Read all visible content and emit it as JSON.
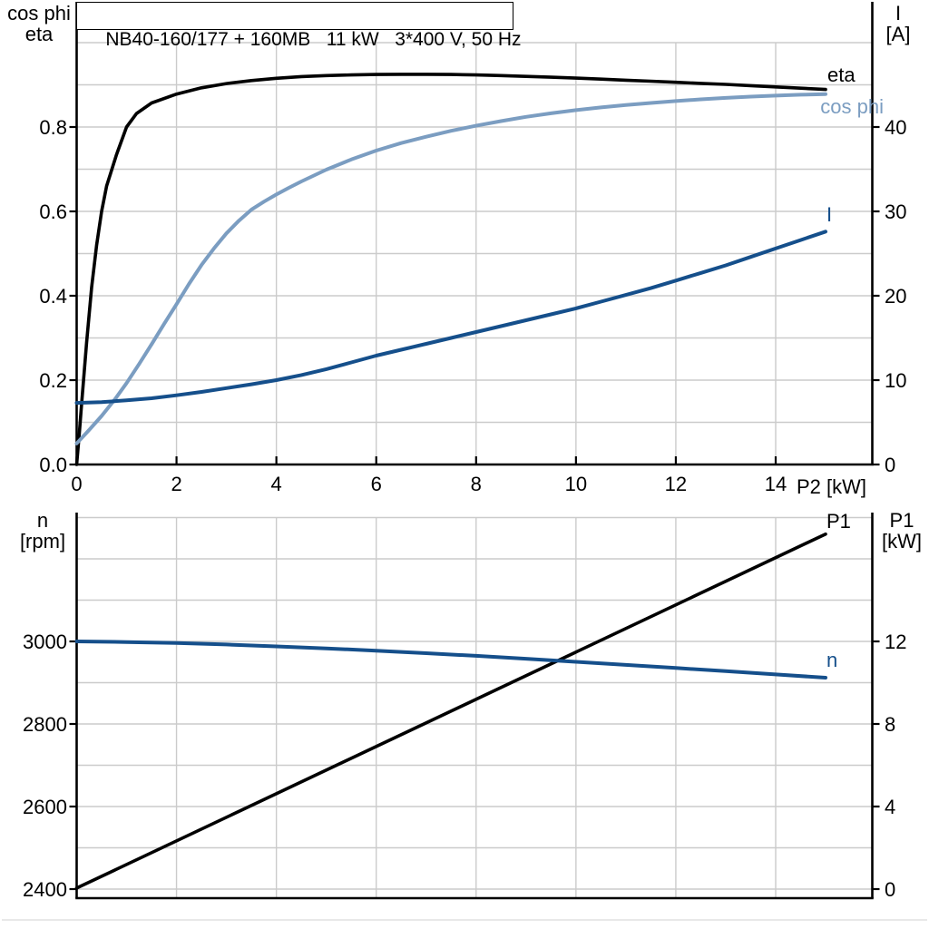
{
  "colors": {
    "black": "#000000",
    "light_blue": "#7b9dc1",
    "dark_blue": "#154f8b",
    "grid": "#cbcbcb",
    "axis": "#000000",
    "background": "#ffffff",
    "separator": "#d9d9d9"
  },
  "chart_data": [
    {
      "type": "line",
      "name": "motor-efficiency-current-chart",
      "title": "NB40-160/177 + 160MB   11 kW   3*400 V, 50 Hz",
      "xlabel": "P2 [kW]",
      "xlim": [
        0,
        15.93
      ],
      "x_ticks": [
        0,
        2,
        4,
        6,
        8,
        10,
        12,
        14
      ],
      "x_grid": [
        2,
        4,
        6,
        8,
        10,
        12,
        14
      ],
      "grid": true,
      "legend_position": "labels-at-curve-ends",
      "left_axis": {
        "label": [
          "cos phi",
          "eta"
        ],
        "lim": [
          0,
          1.097
        ],
        "ticks": [
          0,
          0.2,
          0.4,
          0.6,
          0.8
        ],
        "tick_labels": [
          "0.0",
          "0.2",
          "0.4",
          "0.6",
          "0.8"
        ],
        "grid_values": [
          0.1,
          0.2,
          0.3,
          0.4,
          0.5,
          0.6,
          0.7,
          0.8,
          0.9,
          1.0
        ]
      },
      "right_axis": {
        "label": [
          "I",
          "[A]"
        ],
        "lim": [
          0,
          54.8
        ],
        "ticks": [
          0,
          10,
          20,
          30,
          40
        ],
        "tick_labels": [
          "0",
          "10",
          "20",
          "30",
          "40"
        ]
      },
      "series": [
        {
          "name": "eta",
          "label": "eta",
          "axis": "left",
          "color": "#000000",
          "points": [
            [
              0,
              0
            ],
            [
              0.05,
              0.07
            ],
            [
              0.1,
              0.145
            ],
            [
              0.2,
              0.29
            ],
            [
              0.3,
              0.42
            ],
            [
              0.4,
              0.52
            ],
            [
              0.5,
              0.6
            ],
            [
              0.6,
              0.66
            ],
            [
              0.8,
              0.735
            ],
            [
              1,
              0.8
            ],
            [
              1.2,
              0.832
            ],
            [
              1.5,
              0.857
            ],
            [
              2,
              0.878
            ],
            [
              2.5,
              0.893
            ],
            [
              3,
              0.903
            ],
            [
              3.5,
              0.91
            ],
            [
              4,
              0.9155
            ],
            [
              4.5,
              0.9195
            ],
            [
              5,
              0.922
            ],
            [
              5.5,
              0.9235
            ],
            [
              6,
              0.9245
            ],
            [
              6.5,
              0.925
            ],
            [
              7,
              0.925
            ],
            [
              7.5,
              0.9245
            ],
            [
              8,
              0.9235
            ],
            [
              8.5,
              0.922
            ],
            [
              9,
              0.92
            ],
            [
              9.5,
              0.918
            ],
            [
              10,
              0.916
            ],
            [
              10.5,
              0.9135
            ],
            [
              11,
              0.911
            ],
            [
              11.5,
              0.9085
            ],
            [
              12,
              0.906
            ],
            [
              12.5,
              0.9035
            ],
            [
              13,
              0.901
            ],
            [
              13.5,
              0.898
            ],
            [
              14,
              0.895
            ],
            [
              14.5,
              0.892
            ],
            [
              15,
              0.889
            ]
          ]
        },
        {
          "name": "cos phi",
          "label": "cos phi",
          "axis": "left",
          "color": "#7b9dc1",
          "points": [
            [
              0,
              0.05
            ],
            [
              0.25,
              0.082
            ],
            [
              0.5,
              0.115
            ],
            [
              0.75,
              0.152
            ],
            [
              1,
              0.193
            ],
            [
              1.25,
              0.238
            ],
            [
              1.5,
              0.285
            ],
            [
              1.75,
              0.333
            ],
            [
              2,
              0.38
            ],
            [
              2.25,
              0.428
            ],
            [
              2.5,
              0.473
            ],
            [
              2.75,
              0.512
            ],
            [
              3,
              0.548
            ],
            [
              3.25,
              0.578
            ],
            [
              3.5,
              0.604
            ],
            [
              3.75,
              0.623
            ],
            [
              4,
              0.64
            ],
            [
              4.25,
              0.656
            ],
            [
              4.5,
              0.671
            ],
            [
              5,
              0.699
            ],
            [
              5.5,
              0.723
            ],
            [
              6,
              0.744
            ],
            [
              6.5,
              0.762
            ],
            [
              7,
              0.777
            ],
            [
              7.5,
              0.791
            ],
            [
              8,
              0.803
            ],
            [
              8.5,
              0.814
            ],
            [
              9,
              0.824
            ],
            [
              9.5,
              0.8325
            ],
            [
              10,
              0.84
            ],
            [
              10.5,
              0.8465
            ],
            [
              11,
              0.852
            ],
            [
              11.5,
              0.857
            ],
            [
              12,
              0.8615
            ],
            [
              12.5,
              0.8655
            ],
            [
              13,
              0.869
            ],
            [
              13.5,
              0.872
            ],
            [
              14,
              0.8745
            ],
            [
              14.5,
              0.8765
            ],
            [
              15,
              0.878
            ]
          ]
        },
        {
          "name": "I",
          "label": "I",
          "axis": "right",
          "color": "#154f8b",
          "points": [
            [
              0,
              7.3
            ],
            [
              0.5,
              7.4
            ],
            [
              1,
              7.6
            ],
            [
              1.5,
              7.85
            ],
            [
              2,
              8.2
            ],
            [
              2.5,
              8.6
            ],
            [
              3,
              9.05
            ],
            [
              3.5,
              9.5
            ],
            [
              4,
              10
            ],
            [
              4.5,
              10.6
            ],
            [
              5,
              11.3
            ],
            [
              5.5,
              12.1
            ],
            [
              6,
              12.9
            ],
            [
              6.5,
              13.6
            ],
            [
              7,
              14.3
            ],
            [
              7.5,
              15
            ],
            [
              8,
              15.7
            ],
            [
              8.5,
              16.4
            ],
            [
              9,
              17.1
            ],
            [
              9.5,
              17.8
            ],
            [
              10,
              18.5
            ],
            [
              10.5,
              19.3
            ],
            [
              11,
              20.1
            ],
            [
              11.5,
              20.9
            ],
            [
              12,
              21.8
            ],
            [
              12.5,
              22.7
            ],
            [
              13,
              23.6
            ],
            [
              13.5,
              24.6
            ],
            [
              14,
              25.6
            ],
            [
              14.5,
              26.6
            ],
            [
              15,
              27.6
            ]
          ]
        }
      ]
    },
    {
      "type": "line",
      "name": "speed-input-power-chart",
      "title": "",
      "xlabel": "",
      "xlim": [
        0,
        15.93
      ],
      "x_ticks": [],
      "x_grid": [
        2,
        4,
        6,
        8,
        10,
        12,
        14
      ],
      "grid": true,
      "legend_position": "labels-at-curve-ends",
      "left_axis": {
        "label": [
          "n",
          "[rpm]"
        ],
        "lim": [
          2378,
          3312
        ],
        "ticks": [
          2400,
          2600,
          2800,
          3000
        ],
        "tick_labels": [
          "2400",
          "2600",
          "2800",
          "3000"
        ],
        "grid_values": [
          2400,
          2500,
          2600,
          2700,
          2800,
          2900,
          3000,
          3100,
          3200,
          3300
        ]
      },
      "right_axis": {
        "label": [
          "P1",
          "[kW]"
        ],
        "lim": [
          -0.45,
          18.25
        ],
        "ticks": [
          0,
          4,
          8,
          12
        ],
        "tick_labels": [
          "0",
          "4",
          "8",
          "12"
        ]
      },
      "series": [
        {
          "name": "P1",
          "label": "P1",
          "axis": "right",
          "color": "#000000",
          "points": [
            [
              0,
              0.05
            ],
            [
              15,
              17.2
            ]
          ]
        },
        {
          "name": "n",
          "label": "n",
          "axis": "left",
          "color": "#154f8b",
          "points": [
            [
              0,
              3000
            ],
            [
              1,
              2998.5
            ],
            [
              2,
              2996
            ],
            [
              3,
              2992.5
            ],
            [
              4,
              2988
            ],
            [
              5,
              2983
            ],
            [
              6,
              2977.5
            ],
            [
              7,
              2971.5
            ],
            [
              8,
              2965
            ],
            [
              9,
              2958
            ],
            [
              10,
              2950.5
            ],
            [
              11,
              2943
            ],
            [
              12,
              2935.5
            ],
            [
              13,
              2928
            ],
            [
              14,
              2920
            ],
            [
              15,
              2912
            ]
          ]
        }
      ]
    }
  ]
}
